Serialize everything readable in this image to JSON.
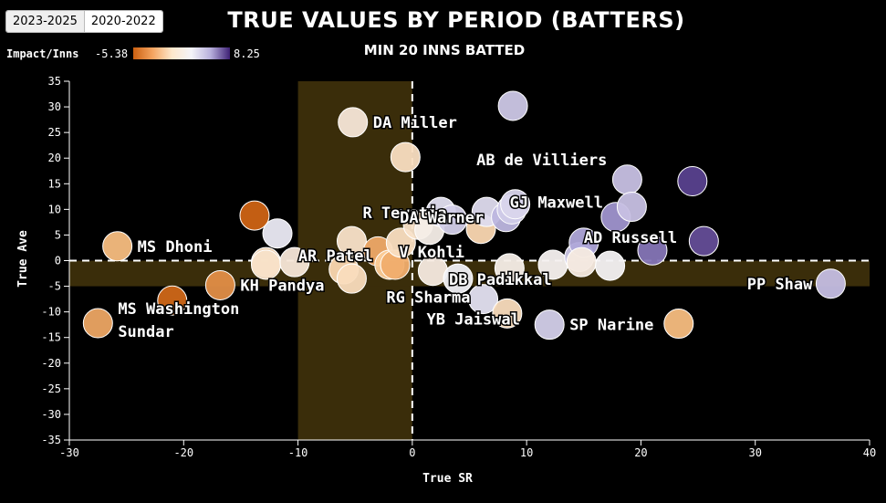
{
  "tabs": [
    {
      "label": "2023-2025",
      "active": false
    },
    {
      "label": "2020-2022",
      "active": true
    }
  ],
  "legend": {
    "label": "Impact/Inns",
    "min": "-5.38",
    "max": "8.25"
  },
  "colors": {
    "neg": "#cc6010",
    "mid": "#f4f4f8",
    "pos": "#3e2175",
    "band": "#3a2d0a"
  },
  "chart_data": {
    "type": "scatter",
    "title": "TRUE VALUES BY PERIOD (BATTERS)",
    "subtitle": "MIN 20 INNS BATTED",
    "xlabel": "True SR",
    "ylabel": "True Ave",
    "xlim": [
      -30,
      40
    ],
    "ylim": [
      -35,
      35
    ],
    "xticks": [
      -30,
      -20,
      -10,
      0,
      10,
      20,
      30,
      40
    ],
    "yticks": [
      -35,
      -30,
      -25,
      -20,
      -15,
      -10,
      -5,
      0,
      5,
      10,
      15,
      20,
      25,
      30,
      35
    ],
    "shaded_x_band": [
      -10,
      0
    ],
    "shaded_y_band": [
      -5,
      0
    ],
    "points": [
      {
        "x": -27.5,
        "y": -12.2,
        "impact": -3.6,
        "label": "MS Washington\nSundar"
      },
      {
        "x": -25.8,
        "y": 2.8,
        "impact": -3.0,
        "label": "MS Dhoni"
      },
      {
        "x": -21.0,
        "y": -7.8,
        "impact": -5.2,
        "label": ""
      },
      {
        "x": -16.8,
        "y": -4.8,
        "impact": -4.2,
        "label": "KH Pandya"
      },
      {
        "x": -13.8,
        "y": 8.8,
        "impact": -5.3,
        "label": ""
      },
      {
        "x": -11.8,
        "y": 5.3,
        "impact": 0.5,
        "label": ""
      },
      {
        "x": -12.8,
        "y": -0.3,
        "impact": -1.5,
        "label": ""
      },
      {
        "x": -12.8,
        "y": -0.8,
        "impact": -1.2,
        "label": ""
      },
      {
        "x": -10.3,
        "y": -0.3,
        "impact": -0.8,
        "label": "AR Patel"
      },
      {
        "x": -6.0,
        "y": -1.7,
        "impact": -1.8,
        "label": ""
      },
      {
        "x": -5.3,
        "y": -3.5,
        "impact": -1.5,
        "label": ""
      },
      {
        "x": -5.3,
        "y": 3.8,
        "impact": -1.2,
        "label": "R Tewatia"
      },
      {
        "x": -3.0,
        "y": 1.8,
        "impact": -3.5,
        "label": ""
      },
      {
        "x": -2.0,
        "y": -0.8,
        "impact": -2.4,
        "label": ""
      },
      {
        "x": -1.5,
        "y": -0.8,
        "impact": -3.4,
        "label": ""
      },
      {
        "x": -1.0,
        "y": 3.5,
        "impact": -1.4,
        "label": "V Kohli"
      },
      {
        "x": -5.2,
        "y": 27.0,
        "impact": -0.8,
        "label": "DA Miller"
      },
      {
        "x": -0.6,
        "y": 20.2,
        "impact": -1.4,
        "label": ""
      },
      {
        "x": 0.5,
        "y": 7.0,
        "impact": -1.2,
        "label": "DA Warner"
      },
      {
        "x": 1.5,
        "y": 6.0,
        "impact": -0.4,
        "label": ""
      },
      {
        "x": 1.8,
        "y": -2.0,
        "impact": -0.6,
        "label": ""
      },
      {
        "x": 2.5,
        "y": 9.5,
        "impact": 1.0,
        "label": ""
      },
      {
        "x": 3.5,
        "y": 8.0,
        "impact": 1.8,
        "label": ""
      },
      {
        "x": 4.0,
        "y": -3.5,
        "impact": 0.2,
        "label": "DB Padikkal"
      },
      {
        "x": 6.0,
        "y": 6.2,
        "impact": -1.8,
        "label": ""
      },
      {
        "x": 6.2,
        "y": -7.5,
        "impact": 0.9,
        "label": "RG Sharma"
      },
      {
        "x": 6.5,
        "y": 9.5,
        "impact": 1.2,
        "label": ""
      },
      {
        "x": 8.2,
        "y": 8.5,
        "impact": 3.0,
        "label": ""
      },
      {
        "x": 8.7,
        "y": 10.0,
        "impact": 2.0,
        "label": ""
      },
      {
        "x": 8.8,
        "y": 30.2,
        "impact": 2.2,
        "label": ""
      },
      {
        "x": 9.0,
        "y": 11.0,
        "impact": 1.5,
        "label": "GJ Maxwell"
      },
      {
        "x": 8.5,
        "y": -1.5,
        "impact": -0.4,
        "label": ""
      },
      {
        "x": 8.3,
        "y": -10.3,
        "impact": -1.5,
        "label": "YB Jaiswal"
      },
      {
        "x": 12.0,
        "y": -12.5,
        "impact": 1.8,
        "label": "SP Narine"
      },
      {
        "x": 12.3,
        "y": -0.8,
        "impact": -0.2,
        "label": ""
      },
      {
        "x": 14.6,
        "y": 0.7,
        "impact": 2.2,
        "label": ""
      },
      {
        "x": 15.0,
        "y": 3.5,
        "impact": 3.8,
        "label": "AD Russell"
      },
      {
        "x": 14.8,
        "y": -0.3,
        "impact": -0.6,
        "label": ""
      },
      {
        "x": 17.3,
        "y": -1.0,
        "impact": -0.1,
        "label": ""
      },
      {
        "x": 17.8,
        "y": 8.5,
        "impact": 4.5,
        "label": ""
      },
      {
        "x": 18.8,
        "y": 15.8,
        "impact": 2.5,
        "label": "AB de Villiers"
      },
      {
        "x": 19.2,
        "y": 10.5,
        "impact": 2.5,
        "label": ""
      },
      {
        "x": 21.0,
        "y": 2.0,
        "impact": 5.5,
        "label": ""
      },
      {
        "x": 23.3,
        "y": -12.3,
        "impact": -3.0,
        "label": ""
      },
      {
        "x": 24.5,
        "y": 15.5,
        "impact": 7.2,
        "label": ""
      },
      {
        "x": 25.5,
        "y": 3.8,
        "impact": 6.8,
        "label": ""
      },
      {
        "x": 36.6,
        "y": -4.5,
        "impact": 2.6,
        "label": "PP Shaw"
      }
    ]
  }
}
